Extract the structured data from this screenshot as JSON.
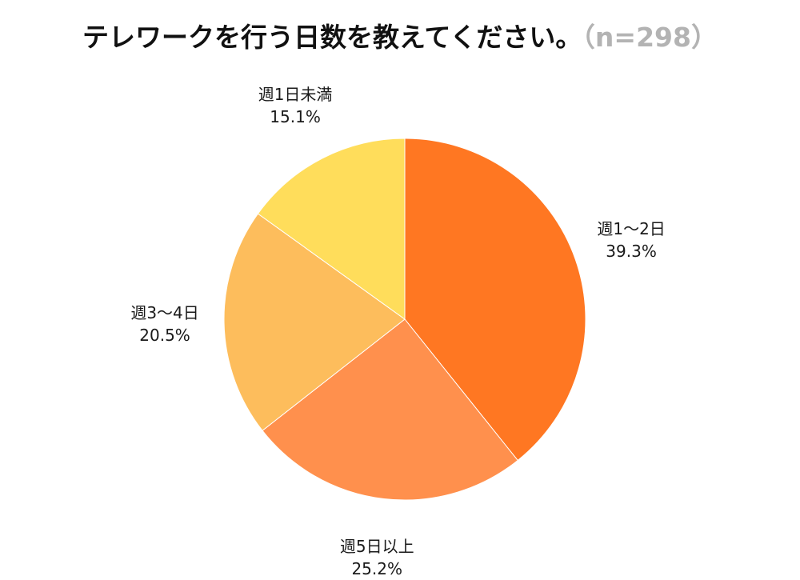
{
  "title": {
    "main": "テレワークを行う日数を教えてください。",
    "sample": "（n=298）"
  },
  "chart_data": {
    "type": "pie",
    "slices": [
      {
        "label": "週1〜2日",
        "value": 39.3,
        "value_text": "39.3%",
        "color": "#ff7722"
      },
      {
        "label": "週5日以上",
        "value": 25.2,
        "value_text": "25.2%",
        "color": "#ff904d"
      },
      {
        "label": "週3〜4日",
        "value": 20.5,
        "value_text": "20.5%",
        "color": "#fdbd5c"
      },
      {
        "label": "週1日未満",
        "value": 15.1,
        "value_text": "15.1%",
        "color": "#ffdd5b"
      }
    ],
    "start_angle_deg": 0,
    "direction": "clockwise"
  }
}
